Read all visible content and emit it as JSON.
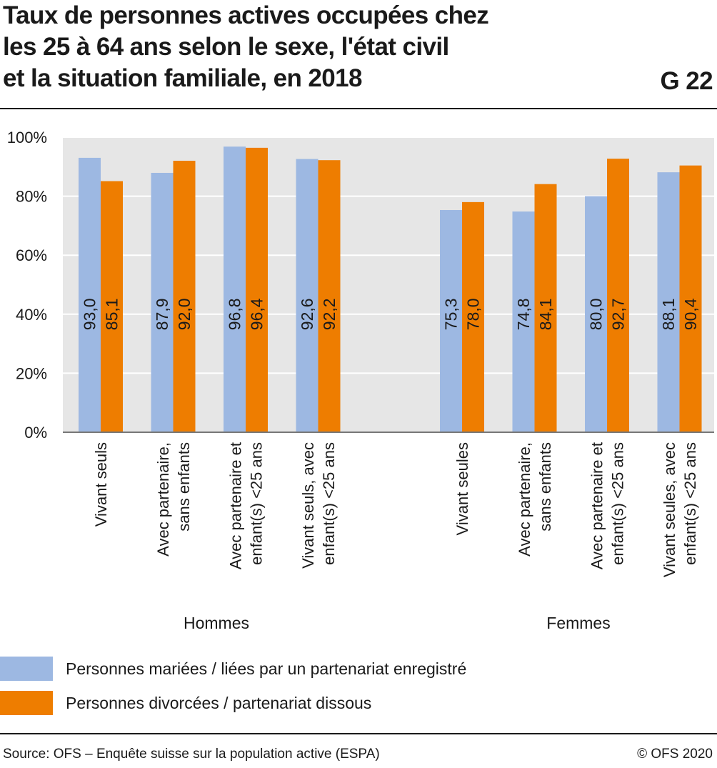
{
  "header": {
    "title_lines": [
      "Taux de personnes actives occupées chez",
      "les 25 à 64 ans selon le sexe, l'état civil",
      "et la situation familiale, en 2018"
    ],
    "figure_number": "G 22"
  },
  "chart_data": {
    "type": "bar",
    "title": "Taux de personnes actives occupées chez les 25 à 64 ans selon le sexe, l'état civil et la situation familiale, en 2018",
    "ylim": [
      0,
      100
    ],
    "yticks": [
      "0%",
      "20%",
      "40%",
      "60%",
      "80%",
      "100%"
    ],
    "grid": true,
    "groups": [
      {
        "label": "Hommes",
        "categories": [
          [
            "Vivant seuls"
          ],
          [
            "Avec partenaire,",
            "sans enfants"
          ],
          [
            "Avec partenaire et",
            "enfant(s) <25 ans"
          ],
          [
            "Vivant seuls, avec",
            "enfant(s) <25 ans"
          ]
        ]
      },
      {
        "label": "Femmes",
        "categories": [
          [
            "Vivant seules"
          ],
          [
            "Avec partenaire,",
            "sans enfants"
          ],
          [
            "Avec partenaire et",
            "enfant(s) <25 ans"
          ],
          [
            "Vivant seules, avec",
            "enfant(s) <25 ans"
          ]
        ]
      }
    ],
    "series": [
      {
        "name": "Personnes mariées / liées par un partenariat enregistré",
        "color": "#9db8e2",
        "values": [
          93.0,
          87.9,
          96.8,
          92.6,
          75.3,
          74.8,
          80.0,
          88.1
        ],
        "labels": [
          "93,0",
          "87,9",
          "96,8",
          "92,6",
          "75,3",
          "74,8",
          "80,0",
          "88,1"
        ]
      },
      {
        "name": "Personnes divorcées / partenariat dissous",
        "color": "#ee7d00",
        "values": [
          85.1,
          92.0,
          96.4,
          92.2,
          78.0,
          84.1,
          92.7,
          90.4
        ],
        "labels": [
          "85,1",
          "92,0",
          "96,4",
          "92,2",
          "78,0",
          "84,1",
          "92,7",
          "90,4"
        ]
      }
    ],
    "legend_position": "bottom"
  },
  "colors": {
    "plot_background": "#e6e6e6",
    "grid": "#ffffff",
    "axis": "#777777",
    "text": "#1a1a1a"
  },
  "footer": {
    "source": "Source: OFS – Enquête suisse sur la population active (ESPA)",
    "copyright": "© OFS 2020"
  }
}
